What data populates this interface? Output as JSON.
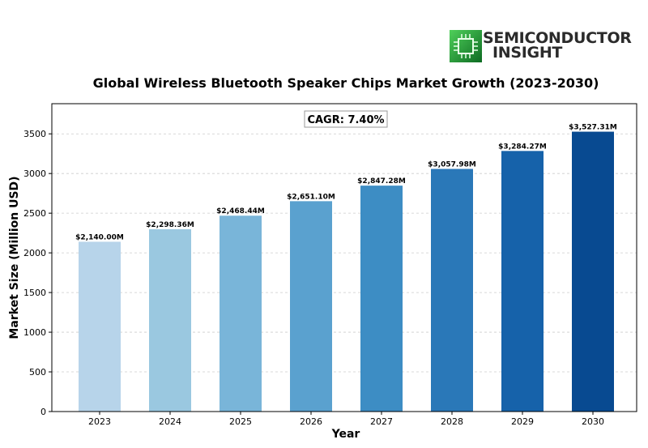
{
  "brand": {
    "line1": "SEMICONDUCTOR",
    "line2": "INSIGHT"
  },
  "chart_data": {
    "type": "bar",
    "title": "Global Wireless Bluetooth Speaker Chips Market Growth (2023-2030)",
    "xlabel": "Year",
    "ylabel": "Market Size (Million USD)",
    "categories": [
      "2023",
      "2024",
      "2025",
      "2026",
      "2027",
      "2028",
      "2029",
      "2030"
    ],
    "values": [
      2140.0,
      2298.36,
      2468.44,
      2651.1,
      2847.28,
      3057.98,
      3284.27,
      3527.31
    ],
    "value_labels": [
      "$2,140.00M",
      "$2,298.36M",
      "$2,468.44M",
      "$2,651.10M",
      "$2,847.28M",
      "$3,057.98M",
      "$3,284.27M",
      "$3,527.31M"
    ],
    "bar_colors": [
      "#b7d4ea",
      "#9ac8e0",
      "#79b5d9",
      "#5aa1cf",
      "#3d8dc4",
      "#2a78b8",
      "#1662aa",
      "#084a91"
    ],
    "ylim": [
      0,
      3880
    ],
    "yticks": [
      0,
      500,
      1000,
      1500,
      2000,
      2500,
      3000,
      3500
    ],
    "grid": true,
    "annotation": "CAGR: 7.40%"
  }
}
